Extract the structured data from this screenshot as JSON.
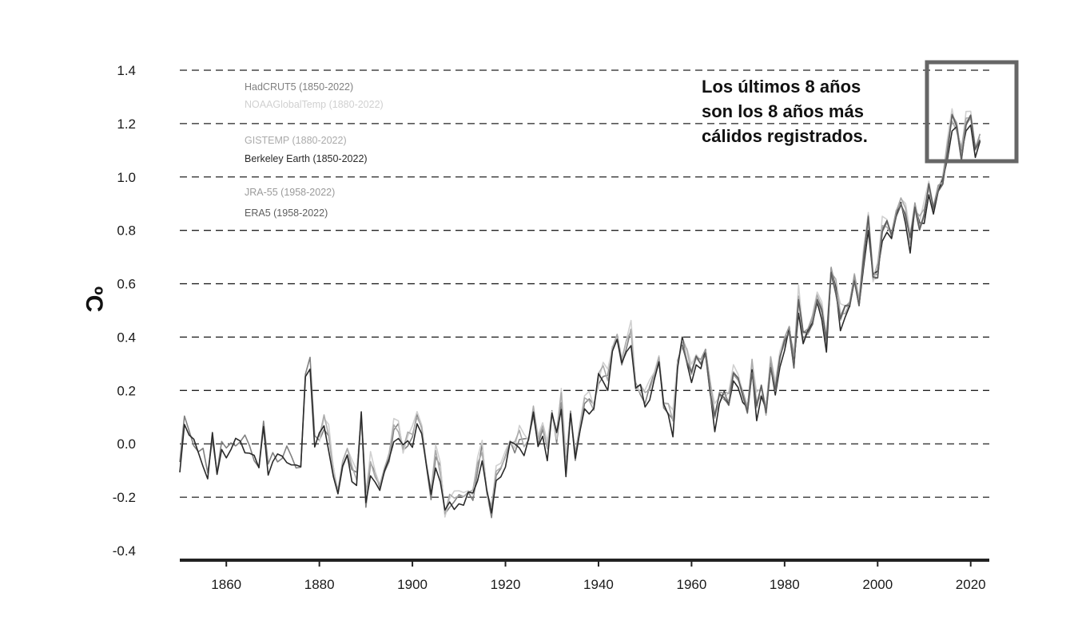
{
  "chart_data": {
    "type": "line",
    "ylabel": "ºC",
    "xlim": [
      1850,
      2024
    ],
    "ylim": [
      -0.4,
      1.4
    ],
    "yticks": [
      "1.4",
      "1.2",
      "1.0",
      "0.8",
      "0.6",
      "0.4",
      "0.2",
      "0.0",
      "-0.2",
      "-0.4"
    ],
    "xticks": [
      "1860",
      "1880",
      "1900",
      "1920",
      "1940",
      "1960",
      "1980",
      "2000",
      "2020"
    ],
    "grid": "horizontal-dashed",
    "legend_placement": "top-left",
    "annotation": {
      "lines": [
        "Los últimos 8 años",
        "son los 8 años más",
        "cálidos registrados."
      ],
      "highlight_x": [
        2015,
        2022
      ]
    },
    "years": [
      1850,
      1851,
      1852,
      1853,
      1854,
      1855,
      1856,
      1857,
      1858,
      1859,
      1860,
      1861,
      1862,
      1863,
      1864,
      1865,
      1866,
      1867,
      1868,
      1869,
      1870,
      1871,
      1872,
      1873,
      1874,
      1875,
      1876,
      1877,
      1878,
      1879,
      1880,
      1881,
      1882,
      1883,
      1884,
      1885,
      1886,
      1887,
      1888,
      1889,
      1890,
      1891,
      1892,
      1893,
      1894,
      1895,
      1896,
      1897,
      1898,
      1899,
      1900,
      1901,
      1902,
      1903,
      1904,
      1905,
      1906,
      1907,
      1908,
      1909,
      1910,
      1911,
      1912,
      1913,
      1914,
      1915,
      1916,
      1917,
      1918,
      1919,
      1920,
      1921,
      1922,
      1923,
      1924,
      1925,
      1926,
      1927,
      1928,
      1929,
      1930,
      1931,
      1932,
      1933,
      1934,
      1935,
      1936,
      1937,
      1938,
      1939,
      1940,
      1941,
      1942,
      1943,
      1944,
      1945,
      1946,
      1947,
      1948,
      1949,
      1950,
      1951,
      1952,
      1953,
      1954,
      1955,
      1956,
      1957,
      1958,
      1959,
      1960,
      1961,
      1962,
      1963,
      1964,
      1965,
      1966,
      1967,
      1968,
      1969,
      1970,
      1971,
      1972,
      1973,
      1974,
      1975,
      1976,
      1977,
      1978,
      1979,
      1980,
      1981,
      1982,
      1983,
      1984,
      1985,
      1986,
      1987,
      1988,
      1989,
      1990,
      1991,
      1992,
      1993,
      1994,
      1995,
      1996,
      1997,
      1998,
      1999,
      2000,
      2001,
      2002,
      2003,
      2004,
      2005,
      2006,
      2007,
      2008,
      2009,
      2010,
      2011,
      2012,
      2013,
      2014,
      2015,
      2016,
      2017,
      2018,
      2019,
      2020,
      2021,
      2022
    ],
    "base": [
      -0.08,
      0.1,
      0.05,
      0.0,
      -0.02,
      -0.03,
      -0.12,
      0.03,
      -0.1,
      0.0,
      -0.02,
      0.0,
      0.0,
      0.02,
      0.02,
      -0.02,
      -0.05,
      -0.08,
      0.08,
      -0.08,
      -0.04,
      -0.06,
      -0.04,
      -0.02,
      -0.06,
      -0.08,
      -0.08,
      0.26,
      0.32,
      0.02,
      0.02,
      0.07,
      0.02,
      -0.1,
      -0.18,
      -0.08,
      -0.04,
      -0.1,
      -0.12,
      0.1,
      -0.22,
      -0.08,
      -0.12,
      -0.16,
      -0.1,
      -0.06,
      0.05,
      0.06,
      -0.02,
      0.01,
      0.02,
      0.1,
      0.06,
      -0.08,
      -0.2,
      -0.05,
      -0.1,
      -0.26,
      -0.22,
      -0.22,
      -0.2,
      -0.2,
      -0.18,
      -0.2,
      -0.1,
      -0.02,
      -0.18,
      -0.26,
      -0.12,
      -0.1,
      -0.05,
      0.01,
      -0.02,
      0.02,
      0.0,
      0.02,
      0.12,
      0.0,
      0.05,
      -0.02,
      0.12,
      0.02,
      0.16,
      -0.08,
      0.12,
      -0.05,
      0.05,
      0.15,
      0.16,
      0.14,
      0.24,
      0.26,
      0.24,
      0.36,
      0.4,
      0.3,
      0.36,
      0.42,
      0.22,
      0.2,
      0.16,
      0.2,
      0.26,
      0.32,
      0.14,
      0.12,
      0.08,
      0.3,
      0.38,
      0.32,
      0.26,
      0.32,
      0.3,
      0.34,
      0.2,
      0.1,
      0.17,
      0.18,
      0.16,
      0.26,
      0.24,
      0.18,
      0.12,
      0.28,
      0.14,
      0.2,
      0.12,
      0.3,
      0.2,
      0.32,
      0.38,
      0.42,
      0.3,
      0.54,
      0.4,
      0.42,
      0.46,
      0.54,
      0.5,
      0.38,
      0.64,
      0.58,
      0.47,
      0.5,
      0.52,
      0.62,
      0.52,
      0.7,
      0.84,
      0.62,
      0.64,
      0.8,
      0.82,
      0.78,
      0.86,
      0.9,
      0.86,
      0.76,
      0.88,
      0.82,
      0.86,
      0.96,
      0.88,
      0.95,
      0.98,
      1.1,
      1.22,
      1.18,
      1.08,
      1.2,
      1.22,
      1.1,
      1.14
    ],
    "series": [
      {
        "name": "HadCRUT5 (1850-2022)",
        "color": "#808080",
        "start": 1850,
        "offset": 0.0,
        "amp": 0.012,
        "phase": 0.6
      },
      {
        "name": "NOAAGlobalTemp (1880-2022)",
        "color": "#d0d0d0",
        "start": 1880,
        "offset": 0.02,
        "amp": 0.022,
        "phase": 1.7
      },
      {
        "name": "GISTEMP (1880-2022)",
        "color": "#ababab",
        "start": 1880,
        "offset": 0.01,
        "amp": 0.018,
        "phase": 2.9
      },
      {
        "name": "Berkeley Earth (1850-2022)",
        "color": "#2a2a2a",
        "start": 1850,
        "offset": -0.015,
        "amp": 0.025,
        "phase": 4.1
      },
      {
        "name": "JRA-55 (1958-2022)",
        "color": "#9a9a9a",
        "start": 1958,
        "offset": 0.005,
        "amp": 0.014,
        "phase": 5.3
      },
      {
        "name": "ERA5 (1958-2022)",
        "color": "#5e5e5e",
        "start": 1958,
        "offset": 0.0,
        "amp": 0.012,
        "phase": 0.2
      }
    ]
  }
}
